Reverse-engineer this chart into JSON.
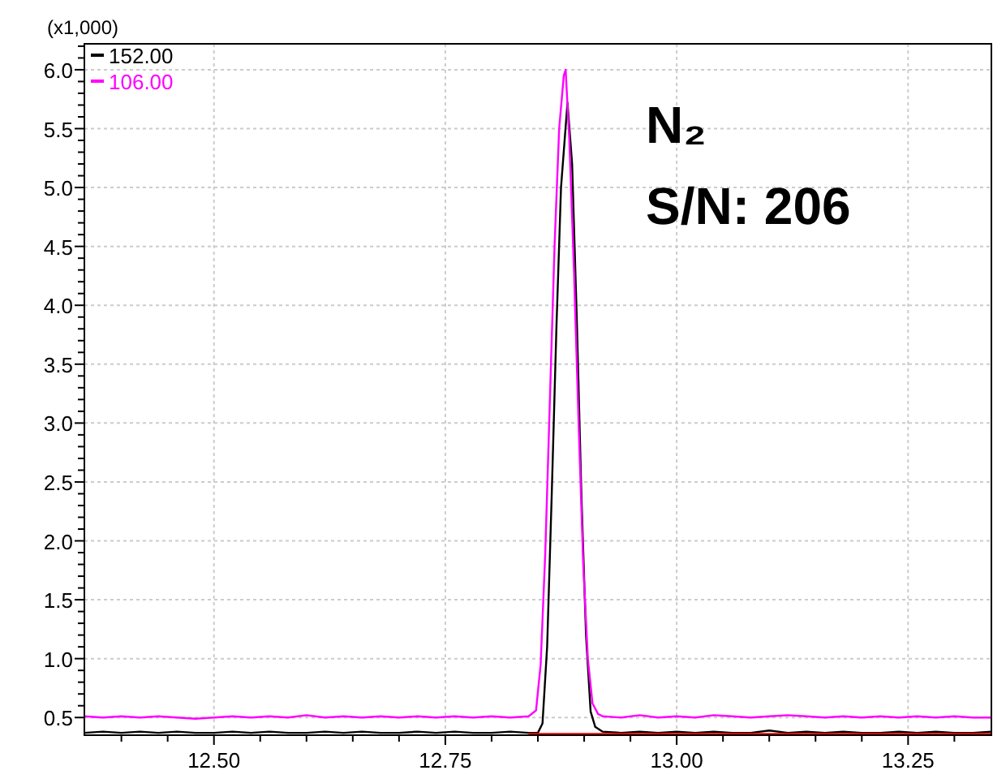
{
  "chart_data": {
    "type": "line",
    "ylabel": "(x1,000)",
    "annotations": [
      "N₂",
      "S/N: 206"
    ],
    "xlim": [
      12.36,
      13.34
    ],
    "ylim": [
      0.35,
      6.22
    ],
    "xticks": [
      {
        "value": 12.4,
        "label": null
      },
      {
        "value": 12.45,
        "label": null
      },
      {
        "value": 12.5,
        "label": "12.50"
      },
      {
        "value": 12.55,
        "label": null
      },
      {
        "value": 12.6,
        "label": null
      },
      {
        "value": 12.65,
        "label": null
      },
      {
        "value": 12.7,
        "label": null
      },
      {
        "value": 12.75,
        "label": "12.75"
      },
      {
        "value": 12.8,
        "label": null
      },
      {
        "value": 12.85,
        "label": null
      },
      {
        "value": 12.9,
        "label": null
      },
      {
        "value": 12.95,
        "label": null
      },
      {
        "value": 13,
        "label": "13.00"
      },
      {
        "value": 13.05,
        "label": null
      },
      {
        "value": 13.1,
        "label": null
      },
      {
        "value": 13.15,
        "label": null
      },
      {
        "value": 13.2,
        "label": null
      },
      {
        "value": 13.25,
        "label": "13.25"
      },
      {
        "value": 13.3,
        "label": null
      }
    ],
    "yticks": [
      {
        "value": 0.5,
        "label": "0.5"
      },
      {
        "value": 0.6,
        "label": null
      },
      {
        "value": 0.7,
        "label": null
      },
      {
        "value": 0.8,
        "label": null
      },
      {
        "value": 0.9,
        "label": null
      },
      {
        "value": 1,
        "label": "1.0"
      },
      {
        "value": 1.1,
        "label": null
      },
      {
        "value": 1.2,
        "label": null
      },
      {
        "value": 1.3,
        "label": null
      },
      {
        "value": 1.4,
        "label": null
      },
      {
        "value": 1.5,
        "label": "1.5"
      },
      {
        "value": 1.6,
        "label": null
      },
      {
        "value": 1.7,
        "label": null
      },
      {
        "value": 1.8,
        "label": null
      },
      {
        "value": 1.9,
        "label": null
      },
      {
        "value": 2,
        "label": "2.0"
      },
      {
        "value": 2.1,
        "label": null
      },
      {
        "value": 2.2,
        "label": null
      },
      {
        "value": 2.3,
        "label": null
      },
      {
        "value": 2.4,
        "label": null
      },
      {
        "value": 2.5,
        "label": "2.5"
      },
      {
        "value": 2.6,
        "label": null
      },
      {
        "value": 2.7,
        "label": null
      },
      {
        "value": 2.8,
        "label": null
      },
      {
        "value": 2.9,
        "label": null
      },
      {
        "value": 3,
        "label": "3.0"
      },
      {
        "value": 3.1,
        "label": null
      },
      {
        "value": 3.2,
        "label": null
      },
      {
        "value": 3.3,
        "label": null
      },
      {
        "value": 3.4,
        "label": null
      },
      {
        "value": 3.5,
        "label": "3.5"
      },
      {
        "value": 3.6,
        "label": null
      },
      {
        "value": 3.7,
        "label": null
      },
      {
        "value": 3.8,
        "label": null
      },
      {
        "value": 3.9,
        "label": null
      },
      {
        "value": 4,
        "label": "4.0"
      },
      {
        "value": 4.1,
        "label": null
      },
      {
        "value": 4.2,
        "label": null
      },
      {
        "value": 4.3,
        "label": null
      },
      {
        "value": 4.4,
        "label": null
      },
      {
        "value": 4.5,
        "label": "4.5"
      },
      {
        "value": 4.6,
        "label": null
      },
      {
        "value": 4.7,
        "label": null
      },
      {
        "value": 4.8,
        "label": null
      },
      {
        "value": 4.9,
        "label": null
      },
      {
        "value": 5,
        "label": "5.0"
      },
      {
        "value": 5.1,
        "label": null
      },
      {
        "value": 5.2,
        "label": null
      },
      {
        "value": 5.3,
        "label": null
      },
      {
        "value": 5.4,
        "label": null
      },
      {
        "value": 5.5,
        "label": "5.5"
      },
      {
        "value": 5.6,
        "label": null
      },
      {
        "value": 5.7,
        "label": null
      },
      {
        "value": 5.8,
        "label": null
      },
      {
        "value": 5.9,
        "label": null
      },
      {
        "value": 6,
        "label": "6.0"
      },
      {
        "value": 6.1,
        "label": null
      },
      {
        "value": 6.2,
        "label": null
      }
    ],
    "grid": true,
    "legend": "top left",
    "line_style": "solid",
    "series": [
      {
        "name": "152.00",
        "color": "#000000",
        "x": [
          12.36,
          12.38,
          12.4,
          12.42,
          12.44,
          12.46,
          12.48,
          12.5,
          12.52,
          12.54,
          12.56,
          12.58,
          12.6,
          12.62,
          12.64,
          12.66,
          12.68,
          12.7,
          12.72,
          12.74,
          12.76,
          12.78,
          12.8,
          12.82,
          12.84,
          12.85,
          12.855,
          12.86,
          12.865,
          12.87,
          12.875,
          12.882,
          12.887,
          12.892,
          12.897,
          12.902,
          12.907,
          12.912,
          12.92,
          12.94,
          12.96,
          12.98,
          13.0,
          13.02,
          13.04,
          13.06,
          13.08,
          13.1,
          13.12,
          13.14,
          13.16,
          13.18,
          13.2,
          13.22,
          13.24,
          13.26,
          13.28,
          13.3,
          13.32,
          13.34
        ],
        "values": [
          0.37,
          0.38,
          0.37,
          0.38,
          0.37,
          0.38,
          0.37,
          0.37,
          0.38,
          0.37,
          0.38,
          0.37,
          0.37,
          0.38,
          0.37,
          0.38,
          0.37,
          0.37,
          0.38,
          0.37,
          0.38,
          0.37,
          0.37,
          0.38,
          0.37,
          0.37,
          0.45,
          1.1,
          2.4,
          3.8,
          5.0,
          5.72,
          5.2,
          3.9,
          2.4,
          1.2,
          0.55,
          0.42,
          0.38,
          0.37,
          0.38,
          0.37,
          0.38,
          0.37,
          0.38,
          0.37,
          0.37,
          0.39,
          0.37,
          0.38,
          0.37,
          0.38,
          0.37,
          0.37,
          0.38,
          0.37,
          0.38,
          0.37,
          0.37,
          0.38
        ]
      },
      {
        "name": "106.00",
        "color": "#ff00ff",
        "x": [
          12.36,
          12.38,
          12.4,
          12.42,
          12.44,
          12.46,
          12.48,
          12.5,
          12.52,
          12.54,
          12.56,
          12.58,
          12.6,
          12.62,
          12.64,
          12.66,
          12.68,
          12.7,
          12.72,
          12.74,
          12.76,
          12.78,
          12.8,
          12.82,
          12.84,
          12.848,
          12.853,
          12.858,
          12.863,
          12.868,
          12.873,
          12.878,
          12.88,
          12.884,
          12.889,
          12.894,
          12.899,
          12.904,
          12.909,
          12.915,
          12.92,
          12.94,
          12.96,
          12.98,
          13.0,
          13.02,
          13.04,
          13.06,
          13.08,
          13.1,
          13.12,
          13.14,
          13.16,
          13.18,
          13.2,
          13.22,
          13.24,
          13.26,
          13.28,
          13.3,
          13.32,
          13.34
        ],
        "values": [
          0.51,
          0.5,
          0.51,
          0.5,
          0.51,
          0.5,
          0.49,
          0.5,
          0.51,
          0.5,
          0.51,
          0.5,
          0.52,
          0.5,
          0.51,
          0.5,
          0.51,
          0.5,
          0.51,
          0.5,
          0.51,
          0.5,
          0.51,
          0.5,
          0.51,
          0.56,
          0.95,
          1.9,
          3.2,
          4.5,
          5.5,
          5.95,
          6.0,
          5.4,
          4.3,
          3.0,
          1.8,
          1.0,
          0.62,
          0.53,
          0.51,
          0.5,
          0.52,
          0.5,
          0.51,
          0.5,
          0.52,
          0.51,
          0.5,
          0.51,
          0.52,
          0.51,
          0.5,
          0.51,
          0.5,
          0.51,
          0.5,
          0.51,
          0.5,
          0.51,
          0.5,
          0.5
        ]
      },
      {
        "color": "#ff0000",
        "x": [
          12.84,
          13.34
        ],
        "values": [
          0.36,
          0.36
        ]
      }
    ]
  }
}
